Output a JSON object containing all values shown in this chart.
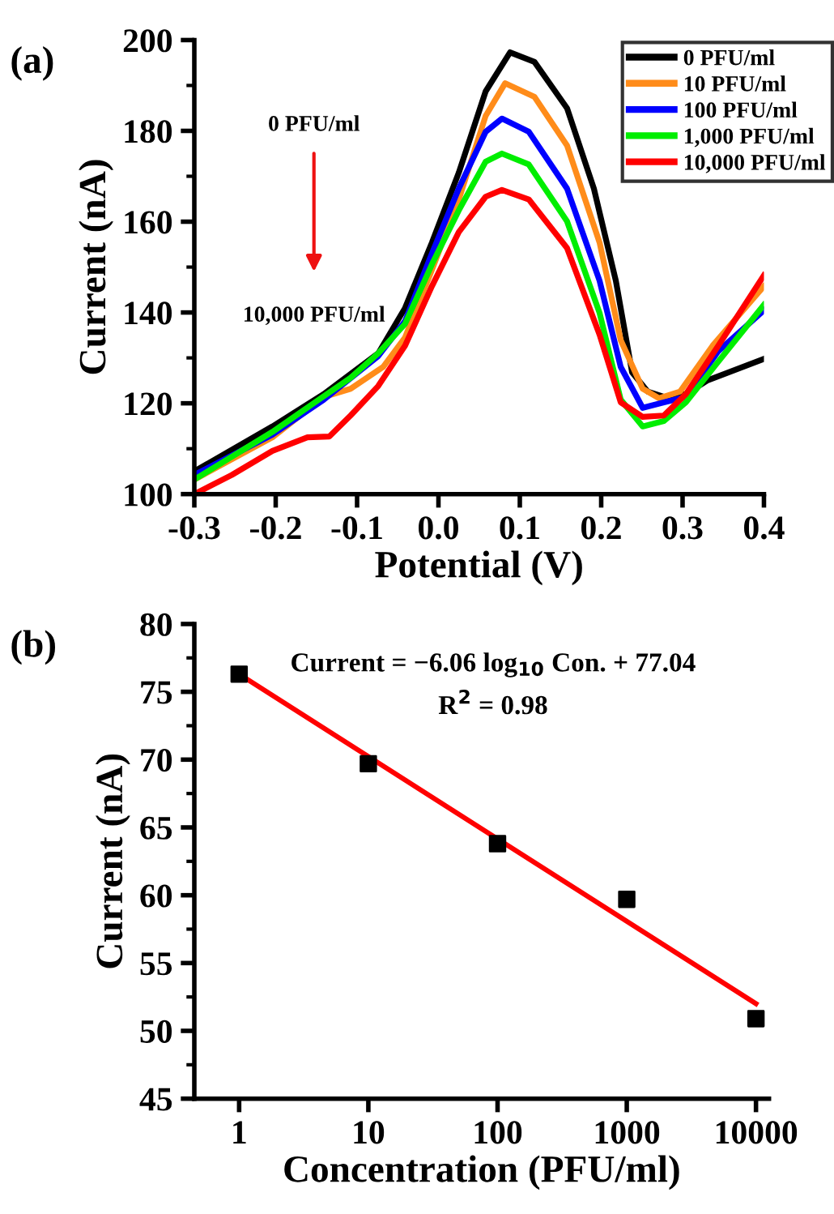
{
  "chart_data": [
    {
      "type": "line",
      "xlabel": "Potential (V)",
      "ylabel": "Current (nA)",
      "xlim": [
        -0.3,
        0.4
      ],
      "ylim": [
        100,
        200
      ],
      "xticks": [
        -0.3,
        -0.2,
        -0.1,
        {
          "value": 0,
          "label": "0.0"
        },
        0.1,
        0.2,
        0.3,
        0.4
      ],
      "yticks": [
        100,
        120,
        140,
        160,
        180,
        200
      ],
      "legend": "top right",
      "grid": false,
      "marker": "none",
      "line_style": "solid",
      "annotations": [
        "(a)",
        "0 PFU/ml",
        "10,000 PFU/ml"
      ],
      "series": [
        {
          "name": "0 PFU/ml",
          "color": "#000000",
          "x": [
            -0.3,
            -0.204,
            -0.141,
            -0.074,
            -0.041,
            -0.008,
            0.025,
            0.058,
            0.088,
            0.118,
            0.158,
            0.191,
            0.218,
            0.238,
            0.257,
            0.277,
            0.304,
            0.33,
            0.4
          ],
          "values": [
            105,
            114.9,
            122,
            131,
            141,
            155.4,
            170.8,
            188.7,
            197.3,
            195.2,
            185,
            167.3,
            147,
            126.8,
            122.6,
            121.4,
            122,
            125,
            129.8
          ]
        },
        {
          "name": "10 PFU/ml",
          "color": "#ff8c1a",
          "x": [
            -0.3,
            -0.204,
            -0.141,
            -0.108,
            -0.068,
            -0.041,
            -0.008,
            0.025,
            0.058,
            0.082,
            0.118,
            0.158,
            0.198,
            0.224,
            0.251,
            0.271,
            0.297,
            0.337,
            0.4
          ],
          "values": [
            103.2,
            112.5,
            121.4,
            123.2,
            128,
            134.5,
            149.4,
            164.9,
            183.3,
            190.5,
            187.5,
            176.8,
            155.4,
            133.9,
            123.2,
            121.1,
            122.6,
            132.7,
            145.8
          ]
        },
        {
          "name": "100 PFU/ml",
          "color": "#0000ff",
          "x": [
            -0.3,
            -0.204,
            -0.141,
            -0.074,
            -0.041,
            -0.008,
            0.025,
            0.058,
            0.078,
            0.111,
            0.158,
            0.198,
            0.224,
            0.251,
            0.277,
            0.304,
            0.344,
            0.4
          ],
          "values": [
            104.2,
            113.1,
            120.8,
            130.4,
            138.1,
            153,
            167.3,
            179.8,
            182.7,
            179.8,
            167.3,
            147,
            128,
            119,
            120.2,
            121.4,
            131.5,
            140.5
          ]
        },
        {
          "name": "1,000 PFU/ml",
          "color": "#00ee00",
          "x": [
            -0.3,
            -0.204,
            -0.147,
            -0.108,
            -0.074,
            -0.041,
            -0.008,
            0.025,
            0.058,
            0.078,
            0.111,
            0.158,
            0.198,
            0.224,
            0.251,
            0.277,
            0.304,
            0.344,
            0.4
          ],
          "values": [
            103.2,
            113.7,
            120.8,
            125.6,
            131,
            137.5,
            150.6,
            162.5,
            173.2,
            175,
            172.6,
            160.1,
            139.9,
            120.8,
            114.9,
            116.1,
            120.2,
            129.2,
            141.7
          ]
        },
        {
          "name": "10,000 PFU/ml",
          "color": "#ff0000",
          "x": [
            -0.3,
            -0.254,
            -0.204,
            -0.161,
            -0.134,
            -0.108,
            -0.074,
            -0.041,
            -0.008,
            0.025,
            0.058,
            0.078,
            0.111,
            0.158,
            0.198,
            0.224,
            0.251,
            0.277,
            0.304,
            0.344,
            0.4
          ],
          "values": [
            100,
            104.2,
            109.5,
            112.5,
            112.7,
            117.3,
            123.8,
            132.7,
            145.8,
            157.7,
            165.5,
            167,
            164.9,
            154.2,
            135.1,
            120.2,
            117,
            117.3,
            122,
            132.7,
            148.2
          ]
        }
      ]
    },
    {
      "type": "scatter",
      "xlabel": "Concentration (PFU/ml)",
      "ylabel": "Current (nA)",
      "log": "x",
      "xlim": [
        0.45,
        12600
      ],
      "ylim": [
        45,
        80
      ],
      "xticks": [
        1,
        10,
        100,
        1000,
        10000
      ],
      "yticks": [
        45,
        50,
        55,
        60,
        65,
        70,
        75,
        80
      ],
      "grid": false,
      "annotations": [
        "(b)",
        "Current = −6.06 log$_{10}$ Con. + 77.04",
        "R$^{2}$ = 0.98"
      ],
      "series": [
        {
          "type": "scatter",
          "marker": "square",
          "color": "#000000",
          "x": [
            1,
            10,
            100,
            1000,
            10000
          ],
          "values": [
            76.3,
            69.7,
            63.8,
            59.7,
            50.9
          ]
        },
        {
          "type": "line",
          "color": "#ff0000",
          "x": [
            1,
            10000
          ],
          "values": [
            76.3,
            52.0
          ]
        }
      ]
    }
  ]
}
